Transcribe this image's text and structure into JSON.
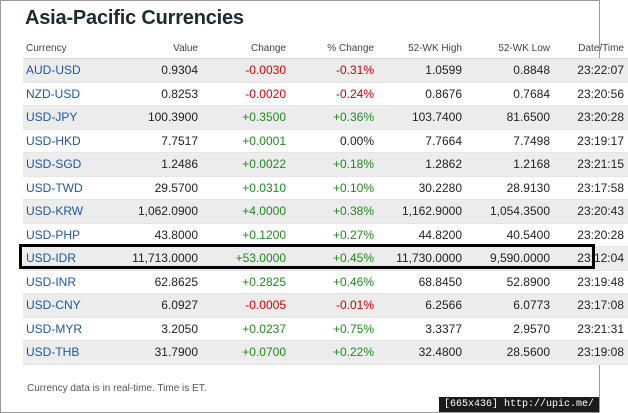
{
  "title": "Asia-Pacific Currencies",
  "table": {
    "headers": [
      "Currency",
      "Value",
      "Change",
      "% Change",
      "52-WK High",
      "52-WK Low",
      "Date/Time"
    ],
    "rows": [
      {
        "currency": "AUD-USD",
        "value": "0.9304",
        "change": "-0.0030",
        "pct": "-0.31%",
        "high": "1.0599",
        "low": "0.8848",
        "time": "23:22:07",
        "dir": "neg"
      },
      {
        "currency": "NZD-USD",
        "value": "0.8253",
        "change": "-0.0020",
        "pct": "-0.24%",
        "high": "0.8676",
        "low": "0.7684",
        "time": "23:20:56",
        "dir": "neg"
      },
      {
        "currency": "USD-JPY",
        "value": "100.3900",
        "change": "+0.3500",
        "pct": "+0.36%",
        "high": "103.7400",
        "low": "81.6500",
        "time": "23:20:28",
        "dir": "pos"
      },
      {
        "currency": "USD-HKD",
        "value": "7.7517",
        "change": "+0.0001",
        "pct": "0.00%",
        "high": "7.7664",
        "low": "7.7498",
        "time": "23:19:17",
        "dir": "pos",
        "pct_dir": "flat"
      },
      {
        "currency": "USD-SGD",
        "value": "1.2486",
        "change": "+0.0022",
        "pct": "+0.18%",
        "high": "1.2862",
        "low": "1.2168",
        "time": "23:21:15",
        "dir": "pos"
      },
      {
        "currency": "USD-TWD",
        "value": "29.5700",
        "change": "+0.0310",
        "pct": "+0.10%",
        "high": "30.2280",
        "low": "28.9130",
        "time": "23:17:58",
        "dir": "pos"
      },
      {
        "currency": "USD-KRW",
        "value": "1,062.0900",
        "change": "+4.0000",
        "pct": "+0.38%",
        "high": "1,162.9000",
        "low": "1,054.3500",
        "time": "23:20:43",
        "dir": "pos"
      },
      {
        "currency": "USD-PHP",
        "value": "43.8000",
        "change": "+0.1200",
        "pct": "+0.27%",
        "high": "44.8200",
        "low": "40.5400",
        "time": "23:20:28",
        "dir": "pos"
      },
      {
        "currency": "USD-IDR",
        "value": "11,713.0000",
        "change": "+53.0000",
        "pct": "+0.45%",
        "high": "11,730.0000",
        "low": "9,590.0000",
        "time": "23:12:04",
        "dir": "pos"
      },
      {
        "currency": "USD-INR",
        "value": "62.8625",
        "change": "+0.2825",
        "pct": "+0.46%",
        "high": "68.8450",
        "low": "52.8900",
        "time": "23:19:48",
        "dir": "pos"
      },
      {
        "currency": "USD-CNY",
        "value": "6.0927",
        "change": "-0.0005",
        "pct": "-0.01%",
        "high": "6.2566",
        "low": "6.0773",
        "time": "23:17:08",
        "dir": "neg"
      },
      {
        "currency": "USD-MYR",
        "value": "3.2050",
        "change": "+0.0237",
        "pct": "+0.75%",
        "high": "3.3377",
        "low": "2.9570",
        "time": "23:21:31",
        "dir": "pos"
      },
      {
        "currency": "USD-THB",
        "value": "31.7900",
        "change": "+0.0700",
        "pct": "+0.22%",
        "high": "32.4800",
        "low": "28.5600",
        "time": "23:19:08",
        "dir": "pos"
      }
    ]
  },
  "footnote": "Currency data is in real-time. Time is ET.",
  "watermark": "[665x436] http://upic.me/",
  "colors": {
    "negative": "#d40000",
    "positive": "#218a21",
    "link": "#1f56a6"
  }
}
